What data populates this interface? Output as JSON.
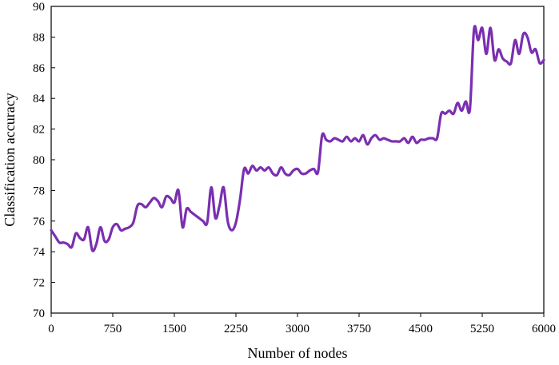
{
  "chart_data": {
    "type": "line",
    "title": "",
    "xlabel": "Number of nodes",
    "ylabel": "Classification accuracy",
    "xlim": [
      0,
      6000
    ],
    "ylim": [
      70,
      90
    ],
    "xticks": [
      0,
      750,
      1500,
      2250,
      3000,
      3750,
      4500,
      5250,
      6000
    ],
    "yticks": [
      70,
      72,
      74,
      76,
      78,
      80,
      82,
      84,
      86,
      88,
      90
    ],
    "grid": false,
    "legend": "none",
    "series": [
      {
        "color": "#7b2fb0",
        "x": [
          0,
          50,
          100,
          150,
          200,
          250,
          300,
          350,
          400,
          450,
          500,
          550,
          600,
          650,
          700,
          750,
          800,
          850,
          900,
          950,
          1000,
          1050,
          1100,
          1150,
          1200,
          1250,
          1300,
          1350,
          1400,
          1450,
          1500,
          1550,
          1600,
          1650,
          1700,
          1750,
          1800,
          1850,
          1900,
          1950,
          2000,
          2050,
          2100,
          2150,
          2200,
          2250,
          2300,
          2350,
          2400,
          2450,
          2500,
          2550,
          2600,
          2650,
          2700,
          2750,
          2800,
          2850,
          2900,
          2950,
          3000,
          3050,
          3100,
          3150,
          3200,
          3250,
          3300,
          3350,
          3400,
          3450,
          3500,
          3550,
          3600,
          3650,
          3700,
          3750,
          3800,
          3850,
          3900,
          3950,
          4000,
          4050,
          4100,
          4150,
          4200,
          4250,
          4300,
          4350,
          4400,
          4450,
          4500,
          4550,
          4600,
          4650,
          4700,
          4750,
          4800,
          4850,
          4900,
          4950,
          5000,
          5050,
          5100,
          5150,
          5200,
          5250,
          5300,
          5350,
          5400,
          5450,
          5500,
          5550,
          5600,
          5650,
          5700,
          5750,
          5800,
          5850,
          5900,
          5950,
          6000
        ],
        "y": [
          75.4,
          75.0,
          74.6,
          74.6,
          74.5,
          74.3,
          75.2,
          74.9,
          74.8,
          75.6,
          74.1,
          74.5,
          75.6,
          74.7,
          74.8,
          75.6,
          75.8,
          75.4,
          75.5,
          75.6,
          75.9,
          77.0,
          77.1,
          76.9,
          77.2,
          77.5,
          77.3,
          76.9,
          77.6,
          77.5,
          77.2,
          78.0,
          75.6,
          76.8,
          76.6,
          76.4,
          76.2,
          76.0,
          75.9,
          78.2,
          76.2,
          77.0,
          78.2,
          76.0,
          75.4,
          75.9,
          77.4,
          79.4,
          79.1,
          79.6,
          79.3,
          79.5,
          79.3,
          79.5,
          79.1,
          79.0,
          79.5,
          79.1,
          79.0,
          79.3,
          79.4,
          79.1,
          79.1,
          79.3,
          79.4,
          79.2,
          81.6,
          81.3,
          81.2,
          81.4,
          81.3,
          81.2,
          81.5,
          81.2,
          81.4,
          81.2,
          81.6,
          81.0,
          81.4,
          81.6,
          81.3,
          81.4,
          81.3,
          81.2,
          81.2,
          81.2,
          81.4,
          81.1,
          81.5,
          81.1,
          81.3,
          81.3,
          81.4,
          81.4,
          81.4,
          83.0,
          83.0,
          83.2,
          83.0,
          83.7,
          83.2,
          83.8,
          83.3,
          88.5,
          87.8,
          88.6,
          86.9,
          88.6,
          86.5,
          87.2,
          86.6,
          86.4,
          86.3,
          87.8,
          86.9,
          88.2,
          88.0,
          87.0,
          87.2,
          86.3,
          86.5
        ]
      }
    ]
  }
}
